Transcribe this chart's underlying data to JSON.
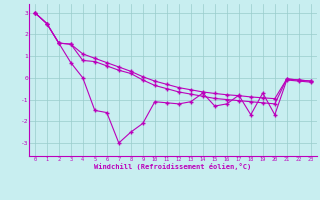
{
  "xlabel": "Windchill (Refroidissement éolien,°C)",
  "background_color": "#c8eef0",
  "line_color": "#bb00bb",
  "grid_color": "#99cccc",
  "xlim": [
    -0.5,
    23.5
  ],
  "ylim": [
    -3.6,
    3.4
  ],
  "yticks": [
    -3,
    -2,
    -1,
    0,
    1,
    2,
    3
  ],
  "xticks": [
    0,
    1,
    2,
    3,
    4,
    5,
    6,
    7,
    8,
    9,
    10,
    11,
    12,
    13,
    14,
    15,
    16,
    17,
    18,
    19,
    20,
    21,
    22,
    23
  ],
  "line1": [
    3.0,
    2.5,
    1.6,
    0.7,
    0.0,
    -1.5,
    -1.6,
    -3.0,
    -2.5,
    -2.1,
    -1.1,
    -1.15,
    -1.2,
    -1.1,
    -0.7,
    -1.3,
    -1.2,
    -0.8,
    -1.7,
    -0.7,
    -1.7,
    -0.1,
    -0.15,
    -0.2
  ],
  "line2": [
    3.0,
    2.5,
    1.6,
    1.55,
    0.8,
    0.75,
    0.55,
    0.35,
    0.2,
    -0.1,
    -0.35,
    -0.5,
    -0.65,
    -0.75,
    -0.85,
    -0.95,
    -1.0,
    -1.05,
    -1.1,
    -1.15,
    -1.2,
    -0.05,
    -0.1,
    -0.15
  ],
  "line3": [
    3.0,
    2.5,
    1.6,
    1.55,
    1.1,
    0.9,
    0.7,
    0.5,
    0.3,
    0.05,
    -0.15,
    -0.3,
    -0.45,
    -0.55,
    -0.65,
    -0.72,
    -0.78,
    -0.82,
    -0.88,
    -0.92,
    -0.96,
    -0.05,
    -0.1,
    -0.15
  ]
}
